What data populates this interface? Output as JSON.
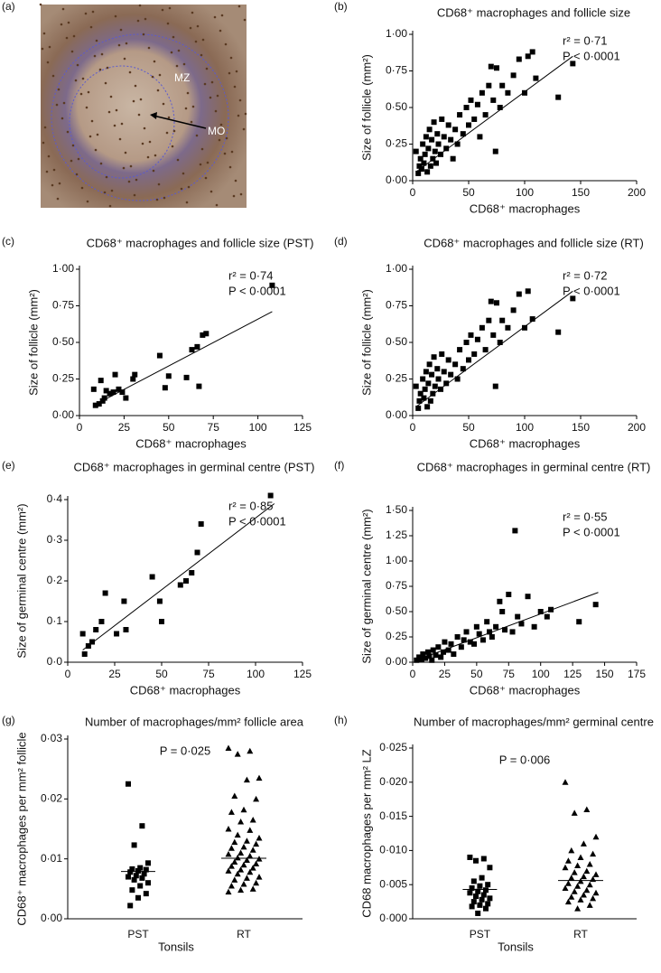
{
  "chart_data": [
    {
      "type": "image",
      "panel": "(a)",
      "labels": [
        "MZ",
        "MO"
      ]
    },
    {
      "type": "scatter",
      "panel": "(b)",
      "title": "CD68⁺ macrophages and follicle size",
      "xlabel": "CD68⁺ macrophages",
      "ylabel": "Size of follicle (mm²)",
      "annotations": [
        "r² = 0·71",
        "P < 0·0001"
      ],
      "marker": "square",
      "color": "#000000",
      "x": [
        3,
        5,
        6,
        7,
        8,
        9,
        10,
        11,
        12,
        13,
        14,
        15,
        16,
        17,
        18,
        19,
        20,
        21,
        22,
        23,
        25,
        26,
        28,
        30,
        32,
        34,
        36,
        38,
        40,
        42,
        45,
        48,
        50,
        52,
        55,
        58,
        60,
        62,
        65,
        68,
        70,
        72,
        74,
        75,
        78,
        80,
        85,
        90,
        95,
        100,
        103,
        107,
        110,
        130,
        143
      ],
      "y": [
        0.2,
        0.05,
        0.1,
        0.15,
        0.08,
        0.25,
        0.12,
        0.18,
        0.3,
        0.06,
        0.22,
        0.35,
        0.1,
        0.28,
        0.15,
        0.4,
        0.2,
        0.12,
        0.32,
        0.25,
        0.18,
        0.42,
        0.3,
        0.22,
        0.38,
        0.28,
        0.15,
        0.35,
        0.25,
        0.45,
        0.32,
        0.5,
        0.38,
        0.55,
        0.42,
        0.52,
        0.3,
        0.6,
        0.45,
        0.65,
        0.78,
        0.55,
        0.2,
        0.77,
        0.5,
        0.65,
        0.6,
        0.72,
        0.83,
        0.6,
        0.85,
        0.88,
        0.7,
        0.57,
        0.8
      ],
      "fit": {
        "x": [
          3,
          143
        ],
        "y": [
          0.06,
          0.85
        ]
      },
      "xlim": [
        0,
        200
      ],
      "xticks": [
        0,
        50,
        100,
        150,
        200
      ],
      "ylim": [
        0,
        1
      ],
      "yticks": [
        {
          "value": 0,
          "label": "0·00"
        },
        {
          "value": 0.25,
          "label": "0·25"
        },
        {
          "value": 0.5,
          "label": "0·50"
        },
        {
          "value": 0.75,
          "label": "0·75"
        },
        {
          "value": 1,
          "label": "1·00"
        }
      ]
    },
    {
      "type": "scatter",
      "panel": "(c)",
      "title": "CD68⁺ macrophages and follicle size (PST)",
      "xlabel": "CD68⁺ macrophages",
      "ylabel": "Size of follicle (mm²)",
      "annotations": [
        "r² = 0·74",
        "P < 0·0001"
      ],
      "marker": "square",
      "color": "#000000",
      "x": [
        8,
        9,
        11,
        12,
        13,
        14,
        15,
        17,
        19,
        20,
        22,
        24,
        26,
        30,
        31,
        45,
        48,
        50,
        60,
        63,
        66,
        67,
        69,
        71,
        108
      ],
      "y": [
        0.18,
        0.07,
        0.08,
        0.24,
        0.1,
        0.12,
        0.17,
        0.15,
        0.16,
        0.28,
        0.18,
        0.16,
        0.12,
        0.25,
        0.28,
        0.41,
        0.19,
        0.27,
        0.26,
        0.45,
        0.47,
        0.2,
        0.55,
        0.56,
        0.89
      ],
      "fit": {
        "x": [
          8,
          108
        ],
        "y": [
          0.07,
          0.71
        ]
      },
      "xlim": [
        0,
        125
      ],
      "xticks": [
        0,
        25,
        50,
        75,
        100,
        125
      ],
      "ylim": [
        0,
        1
      ],
      "yticks": [
        {
          "value": 0,
          "label": "0·00"
        },
        {
          "value": 0.25,
          "label": "0·25"
        },
        {
          "value": 0.5,
          "label": "0·50"
        },
        {
          "value": 0.75,
          "label": "0·75"
        },
        {
          "value": 1,
          "label": "1·00"
        }
      ]
    },
    {
      "type": "scatter",
      "panel": "(d)",
      "title": "CD68⁺ macrophages and follicle size (RT)",
      "xlabel": "CD68⁺ macrophages",
      "ylabel": "Size of follicle (mm²)",
      "annotations": [
        "r² = 0·72",
        "P < 0·0001"
      ],
      "marker": "square",
      "color": "#000000",
      "x": [
        3,
        5,
        6,
        7,
        9,
        10,
        11,
        12,
        13,
        14,
        15,
        16,
        17,
        18,
        19,
        20,
        22,
        23,
        25,
        26,
        28,
        30,
        32,
        34,
        38,
        40,
        42,
        45,
        48,
        50,
        52,
        55,
        58,
        62,
        65,
        68,
        70,
        72,
        74,
        75,
        78,
        80,
        85,
        90,
        95,
        100,
        103,
        107,
        130,
        143
      ],
      "y": [
        0.2,
        0.05,
        0.1,
        0.15,
        0.25,
        0.12,
        0.18,
        0.3,
        0.06,
        0.22,
        0.35,
        0.1,
        0.28,
        0.15,
        0.4,
        0.2,
        0.32,
        0.25,
        0.18,
        0.42,
        0.3,
        0.22,
        0.38,
        0.28,
        0.35,
        0.25,
        0.45,
        0.32,
        0.5,
        0.38,
        0.55,
        0.42,
        0.52,
        0.6,
        0.45,
        0.65,
        0.78,
        0.55,
        0.2,
        0.77,
        0.5,
        0.65,
        0.6,
        0.72,
        0.83,
        0.6,
        0.85,
        0.66,
        0.57,
        0.8
      ],
      "fit": {
        "x": [
          3,
          143
        ],
        "y": [
          0.06,
          0.85
        ]
      },
      "xlim": [
        0,
        200
      ],
      "xticks": [
        0,
        50,
        100,
        150,
        200
      ],
      "ylim": [
        0,
        1
      ],
      "yticks": [
        {
          "value": 0,
          "label": "0·00"
        },
        {
          "value": 0.25,
          "label": "0·25"
        },
        {
          "value": 0.5,
          "label": "0·50"
        },
        {
          "value": 0.75,
          "label": "0·75"
        },
        {
          "value": 1,
          "label": "1·00"
        }
      ]
    },
    {
      "type": "scatter",
      "panel": "(e)",
      "title": "CD68⁺ macrophages in germinal centre (PST)",
      "xlabel": "CD68⁺ macrophages",
      "ylabel": "Size of germinal centre (mm²)",
      "annotations": [
        "r² = 0·85",
        "P < 0·0001"
      ],
      "marker": "square",
      "color": "#000000",
      "x": [
        8,
        9,
        11,
        13,
        15,
        18,
        20,
        26,
        30,
        31,
        45,
        49,
        50,
        60,
        63,
        66,
        69,
        71,
        108
      ],
      "y": [
        0.07,
        0.02,
        0.04,
        0.05,
        0.08,
        0.1,
        0.17,
        0.07,
        0.15,
        0.08,
        0.21,
        0.15,
        0.1,
        0.19,
        0.2,
        0.22,
        0.27,
        0.34,
        0.41
      ],
      "fit": {
        "x": [
          8,
          110
        ],
        "y": [
          0.03,
          0.39
        ]
      },
      "xlim": [
        0,
        125
      ],
      "xticks": [
        0,
        25,
        50,
        75,
        100,
        125
      ],
      "ylim": [
        0,
        0.4
      ],
      "yticks": [
        {
          "value": 0,
          "label": "0·0"
        },
        {
          "value": 0.1,
          "label": "0·1"
        },
        {
          "value": 0.2,
          "label": "0·2"
        },
        {
          "value": 0.3,
          "label": "0·3"
        },
        {
          "value": 0.4,
          "label": "0·4"
        }
      ]
    },
    {
      "type": "scatter",
      "panel": "(f)",
      "title": "CD68⁺ macrophages in germinal centre (RT)",
      "xlabel": "CD68⁺ macrophages",
      "ylabel": "Size of germinal centre (mm²)",
      "annotations": [
        "r² = 0·55",
        "P < 0·0001"
      ],
      "marker": "square",
      "color": "#000000",
      "x": [
        3,
        5,
        7,
        8,
        10,
        12,
        13,
        15,
        16,
        18,
        20,
        22,
        24,
        25,
        28,
        30,
        32,
        35,
        38,
        40,
        42,
        45,
        48,
        50,
        52,
        55,
        58,
        60,
        62,
        65,
        68,
        70,
        72,
        75,
        78,
        80,
        82,
        85,
        90,
        95,
        100,
        105,
        108,
        130,
        143
      ],
      "y": [
        0.02,
        0.05,
        0.03,
        0.08,
        0.04,
        0.1,
        0.06,
        0.02,
        0.12,
        0.07,
        0.15,
        0.05,
        0.1,
        0.2,
        0.12,
        0.18,
        0.08,
        0.25,
        0.15,
        0.22,
        0.3,
        0.2,
        0.18,
        0.35,
        0.28,
        0.22,
        0.4,
        0.3,
        0.25,
        0.35,
        0.6,
        0.5,
        0.32,
        0.67,
        0.3,
        1.3,
        0.45,
        0.38,
        0.65,
        0.35,
        0.5,
        0.45,
        0.52,
        0.4,
        0.57
      ],
      "fit": {
        "x": [
          3,
          145
        ],
        "y": [
          0.02,
          0.69
        ]
      },
      "xlim": [
        0,
        175
      ],
      "xticks": [
        0,
        25,
        50,
        75,
        100,
        125,
        150,
        175
      ],
      "ylim": [
        0,
        1.5
      ],
      "yticks": [
        {
          "value": 0,
          "label": "0·00"
        },
        {
          "value": 0.25,
          "label": "0·25"
        },
        {
          "value": 0.5,
          "label": "0·50"
        },
        {
          "value": 0.75,
          "label": "0·75"
        },
        {
          "value": 1,
          "label": "1·00"
        },
        {
          "value": 1.25,
          "label": "1·25"
        },
        {
          "value": 1.5,
          "label": "1·50"
        }
      ]
    },
    {
      "type": "dot",
      "panel": "(g)",
      "title": "Number of macrophages/mm² follicle area",
      "xlabel": "Tonsils",
      "ylabel": "CD68⁺ macrophages per mm² follicle",
      "annotations": [
        "P = 0·025"
      ],
      "categories": [
        "PST",
        "RT"
      ],
      "color": "#000000",
      "groups": [
        {
          "marker": "square",
          "median": 0.0079,
          "values": [
            0.0225,
            0.0155,
            0.0123,
            0.0093,
            0.0085,
            0.0083,
            0.0082,
            0.008,
            0.0078,
            0.0075,
            0.0072,
            0.007,
            0.0068,
            0.0065,
            0.006,
            0.0055,
            0.0048,
            0.0042,
            0.0035,
            0.0022
          ]
        },
        {
          "marker": "triangle",
          "median": 0.0101,
          "values": [
            0.0285,
            0.028,
            0.0275,
            0.0235,
            0.0232,
            0.0205,
            0.02,
            0.0182,
            0.0178,
            0.0165,
            0.0162,
            0.015,
            0.0148,
            0.014,
            0.0135,
            0.013,
            0.0128,
            0.0125,
            0.012,
            0.0118,
            0.0115,
            0.011,
            0.0108,
            0.0105,
            0.0102,
            0.01,
            0.0098,
            0.0095,
            0.0092,
            0.009,
            0.0088,
            0.0085,
            0.0082,
            0.008,
            0.0078,
            0.0075,
            0.007,
            0.0068,
            0.0065,
            0.006,
            0.0058,
            0.0055,
            0.005,
            0.0048,
            0.0045
          ]
        }
      ],
      "ylim": [
        0,
        0.03
      ],
      "yticks": [
        {
          "value": 0,
          "label": "0·00"
        },
        {
          "value": 0.01,
          "label": "0·01"
        },
        {
          "value": 0.02,
          "label": "0·02"
        },
        {
          "value": 0.03,
          "label": "0·03"
        }
      ]
    },
    {
      "type": "dot",
      "panel": "(h)",
      "title": "Number of macrophages/mm² germinal centre",
      "xlabel": "Tonsils",
      "ylabel": "CD68 macrophages per mm² LZ",
      "annotations": [
        "P = 0·006"
      ],
      "categories": [
        "PST",
        "RT"
      ],
      "color": "#000000",
      "groups": [
        {
          "marker": "square",
          "median": 0.0043,
          "values": [
            0.009,
            0.0088,
            0.0085,
            0.0075,
            0.006,
            0.0055,
            0.005,
            0.0048,
            0.0045,
            0.0042,
            0.004,
            0.0038,
            0.0035,
            0.0033,
            0.003,
            0.0028,
            0.0025,
            0.0022,
            0.002,
            0.0018,
            0.0015,
            0.0008
          ]
        },
        {
          "marker": "triangle",
          "median": 0.0056,
          "values": [
            0.02,
            0.016,
            0.0155,
            0.012,
            0.011,
            0.01,
            0.0095,
            0.009,
            0.0085,
            0.008,
            0.0078,
            0.0075,
            0.007,
            0.0068,
            0.0065,
            0.0062,
            0.006,
            0.0058,
            0.0055,
            0.0052,
            0.005,
            0.0048,
            0.0045,
            0.0042,
            0.004,
            0.0038,
            0.0035,
            0.0032,
            0.003,
            0.0028,
            0.0025,
            0.002,
            0.0015
          ]
        }
      ],
      "ylim": [
        0,
        0.025
      ],
      "yticks": [
        {
          "value": 0,
          "label": "0·000"
        },
        {
          "value": 0.005,
          "label": "0·005"
        },
        {
          "value": 0.01,
          "label": "0·010"
        },
        {
          "value": 0.015,
          "label": "0·015"
        },
        {
          "value": 0.02,
          "label": "0·020"
        },
        {
          "value": 0.025,
          "label": "0·025"
        }
      ]
    }
  ]
}
